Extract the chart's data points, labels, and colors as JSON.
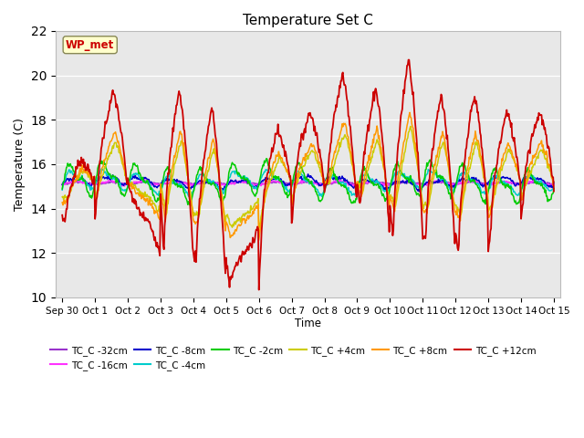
{
  "title": "Temperature Set C",
  "xlabel": "Time",
  "ylabel": "Temperature (C)",
  "ylim": [
    10,
    22
  ],
  "background_color": "#ffffff",
  "plot_bg_color": "#e8e8e8",
  "grid_color": "#ffffff",
  "annotation_text": "WP_met",
  "annotation_color": "#cc0000",
  "annotation_bg": "#ffffcc",
  "annotation_border": "#888855",
  "series_colors": {
    "TC_C -32cm": "#9933cc",
    "TC_C -16cm": "#ff33ff",
    "TC_C -8cm": "#0000cc",
    "TC_C -4cm": "#00cccc",
    "TC_C -2cm": "#00cc00",
    "TC_C +4cm": "#cccc00",
    "TC_C +8cm": "#ff9900",
    "TC_C +12cm": "#cc0000"
  },
  "xtick_labels": [
    "Sep 30",
    "Oct 1",
    "Oct 2",
    "Oct 3",
    "Oct 4",
    "Oct 5",
    "Oct 6",
    "Oct 7",
    "Oct 8",
    "Oct 9",
    "Oct 10",
    "Oct 11",
    "Oct 12",
    "Oct 13",
    "Oct 14",
    "Oct 15"
  ],
  "xtick_positions": [
    0,
    1,
    2,
    3,
    4,
    5,
    6,
    7,
    8,
    9,
    10,
    11,
    12,
    13,
    14,
    15
  ]
}
